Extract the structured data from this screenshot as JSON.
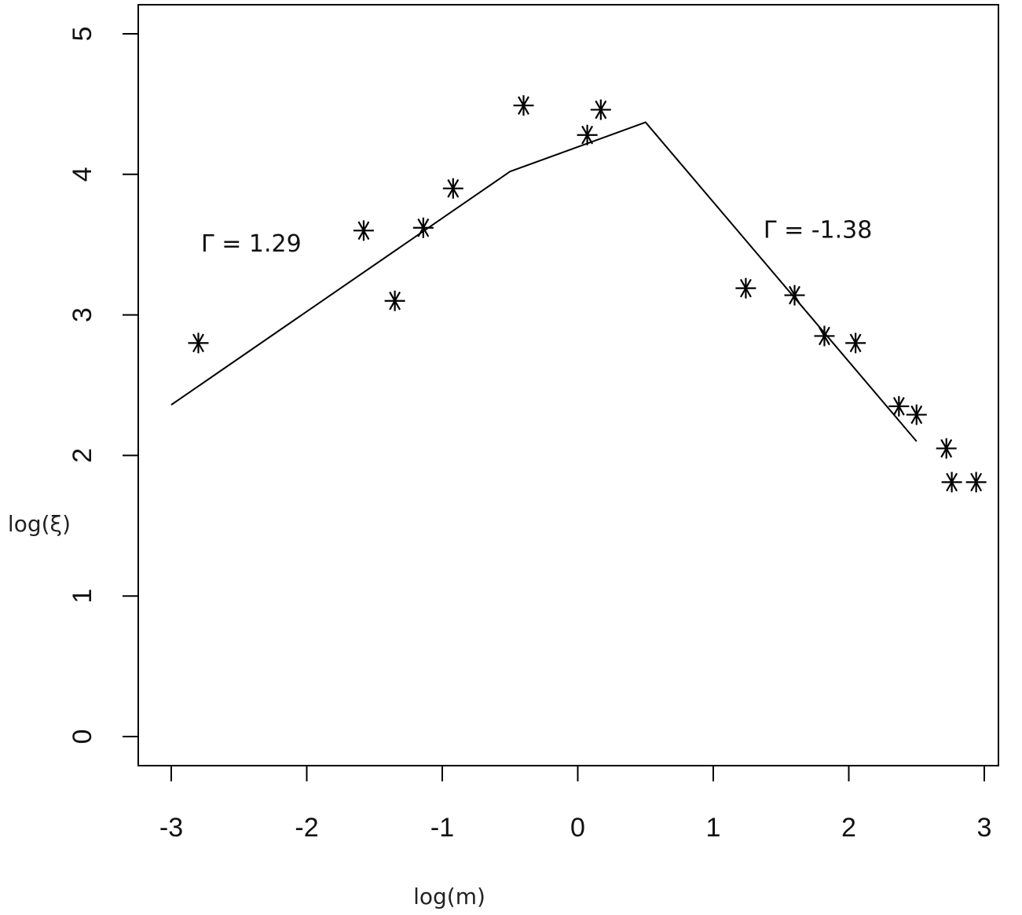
{
  "chart_data": {
    "type": "scatter",
    "title": "",
    "xlabel": "log(m)",
    "ylabel": "log(ξ)",
    "xlim": [
      -3.23,
      3.23
    ],
    "ylim": [
      -0.2,
      5.2
    ],
    "x_ticks": [
      "-3",
      "-2",
      "-1",
      "0",
      "1",
      "2",
      "3"
    ],
    "y_ticks": [
      "0",
      "1",
      "2",
      "3",
      "4",
      "5"
    ],
    "grid": false,
    "marker": "asterisk",
    "color": "#000000",
    "points": [
      {
        "x": -2.8,
        "y": 2.8
      },
      {
        "x": -1.58,
        "y": 3.6
      },
      {
        "x": -1.35,
        "y": 3.1
      },
      {
        "x": -1.14,
        "y": 3.62
      },
      {
        "x": -0.92,
        "y": 3.9
      },
      {
        "x": -0.4,
        "y": 4.49
      },
      {
        "x": 0.07,
        "y": 4.28
      },
      {
        "x": 0.17,
        "y": 4.46
      },
      {
        "x": 1.24,
        "y": 3.19
      },
      {
        "x": 1.6,
        "y": 3.14
      },
      {
        "x": 1.82,
        "y": 2.85
      },
      {
        "x": 2.05,
        "y": 2.8
      },
      {
        "x": 2.37,
        "y": 2.35
      },
      {
        "x": 2.5,
        "y": 2.29
      },
      {
        "x": 2.72,
        "y": 2.05
      },
      {
        "x": 2.76,
        "y": 1.81
      },
      {
        "x": 2.94,
        "y": 1.81
      }
    ],
    "fit_line": [
      {
        "x": -3.0,
        "y": 2.36
      },
      {
        "x": -0.5,
        "y": 4.02
      },
      {
        "x": 0.5,
        "y": 4.37
      },
      {
        "x": 2.5,
        "y": 2.1
      }
    ],
    "annotations": [
      {
        "text": "Γ = 1.29",
        "x": -2.78,
        "y": 3.45
      },
      {
        "text": "Γ = -1.38",
        "x": 1.37,
        "y": 3.55
      }
    ]
  }
}
